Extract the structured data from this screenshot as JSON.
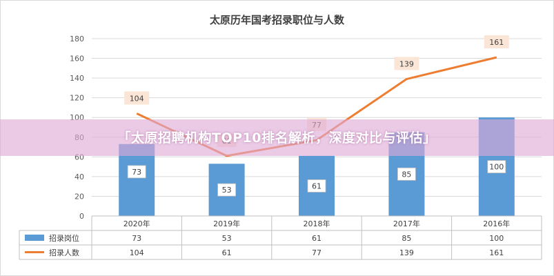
{
  "chart_data": {
    "type": "bar",
    "title": "太原历年国考招录职位与人数",
    "categories": [
      "2020年",
      "2019年",
      "2018年",
      "2017年",
      "2016年"
    ],
    "series": [
      {
        "name": "招录岗位",
        "type": "bar",
        "values": [
          73,
          53,
          61,
          85,
          100
        ]
      },
      {
        "name": "招录人数",
        "type": "line",
        "values": [
          104,
          61,
          77,
          139,
          161
        ]
      }
    ],
    "ylim": [
      0,
      180
    ],
    "yticks": [
      0,
      20,
      40,
      60,
      80,
      100,
      120,
      140,
      160,
      180
    ],
    "grid": true,
    "data_table": true
  },
  "overlay": {
    "banner_text": "「太原招聘机构TOP10排名解析，深度对比与评估」"
  },
  "colors": {
    "bar": "#5b9bd5",
    "line": "#ed7d31",
    "label_bg": "#fbe5d6",
    "banner": "#deaad7"
  }
}
